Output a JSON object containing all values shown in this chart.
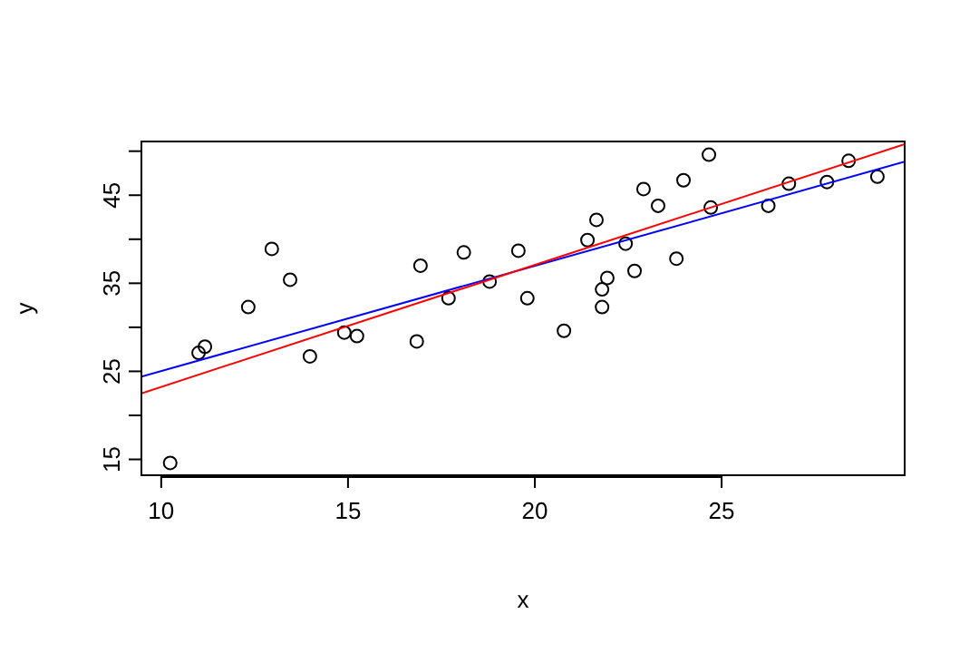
{
  "chart_data": {
    "type": "scatter",
    "xlabel": "x",
    "ylabel": "y",
    "xlim": [
      9.47,
      29.9
    ],
    "ylim": [
      13.2,
      51.1
    ],
    "xticks": [
      10,
      15,
      20,
      25
    ],
    "yticks": [
      15,
      {
        "value": 20,
        "label": null
      },
      25,
      {
        "value": 30,
        "label": null
      },
      35,
      {
        "value": 40,
        "label": null
      },
      45,
      {
        "value": 50,
        "label": null
      }
    ],
    "grid": false,
    "marker": "circle",
    "series": [
      {
        "type": "scatter",
        "color": "#000000",
        "x": [
          10.24,
          11.0,
          11.17,
          12.33,
          12.96,
          13.45,
          13.98,
          14.9,
          15.24,
          16.84,
          16.94,
          17.69,
          18.1,
          18.79,
          19.56,
          19.8,
          20.78,
          21.41,
          21.65,
          21.8,
          21.8,
          21.94,
          22.43,
          22.67,
          22.91,
          23.3,
          23.79,
          23.98,
          24.66,
          24.71,
          26.25,
          26.8,
          27.82,
          28.4,
          29.17
        ],
        "values": [
          14.6,
          27.1,
          27.8,
          32.3,
          38.9,
          35.4,
          26.7,
          29.4,
          29.0,
          28.4,
          37.0,
          33.3,
          38.5,
          35.2,
          38.7,
          33.3,
          29.6,
          39.9,
          42.2,
          32.3,
          34.3,
          35.6,
          39.5,
          36.4,
          45.7,
          43.8,
          37.8,
          46.7,
          49.6,
          43.6,
          43.8,
          46.3,
          46.5,
          48.9,
          47.1
        ]
      },
      {
        "type": "line",
        "color": "#0000ff",
        "x": [
          9.47,
          29.9
        ],
        "values": [
          24.4,
          48.8
        ],
        "marker": "none"
      },
      {
        "type": "line",
        "color": "#ff0000",
        "x": [
          9.47,
          29.9
        ],
        "values": [
          22.5,
          50.8
        ],
        "marker": "none"
      }
    ]
  }
}
